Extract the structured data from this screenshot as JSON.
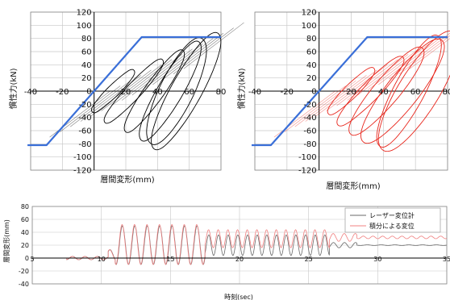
{
  "colors": {
    "black_series": "#000000",
    "red_series": "#e8261c",
    "envelope": "#3a6fd8",
    "gray_series": "#6a6a6a",
    "pink_series": "#f08080",
    "grid": "#c8c8c8"
  },
  "chart_data": [
    {
      "type": "line",
      "ylabel": "慣性力(kN)",
      "xlabel": "層間変形(mm)",
      "xlim": [
        -40,
        80
      ],
      "ylim": [
        -120,
        120
      ],
      "xticks": [
        -40,
        -20,
        0,
        20,
        40,
        60,
        80
      ],
      "yticks": [
        -120,
        -100,
        -80,
        -60,
        -40,
        -20,
        0,
        20,
        40,
        60,
        80,
        100,
        120
      ],
      "grid": true,
      "series": [
        {
          "role": "envelope",
          "color": "#3a6fd8",
          "x": [
            -42,
            -30,
            30,
            80
          ],
          "y": [
            -82,
            -82,
            82,
            82
          ]
        },
        {
          "role": "hysteresis-loops",
          "color": "#000000",
          "loops": [
            {
              "a": 13,
              "b": 12,
              "d": 40,
              "h": 32,
              "w": 4.0
            },
            {
              "a": 18,
              "b": 25,
              "d": 55,
              "h": 48,
              "w": 5.0
            },
            {
              "a": 18,
              "b": 38,
              "d": 68,
              "h": 62,
              "w": 6.0
            },
            {
              "a": 18,
              "b": 48,
              "d": 78,
              "h": 75,
              "w": 7.5
            },
            {
              "a": 20,
              "b": 58,
              "d": 88,
              "h": 88,
              "w": 9.0
            },
            {
              "a": 16,
              "b": 52,
              "d": 82,
              "h": 80,
              "w": 10.0
            }
          ]
        }
      ]
    },
    {
      "type": "line",
      "ylabel": "慣性力(kN)",
      "xlabel": "層間変形(mm)",
      "xlim": [
        -40,
        80
      ],
      "ylim": [
        -120,
        120
      ],
      "xticks": [
        -40,
        -20,
        0,
        20,
        40,
        60,
        80
      ],
      "yticks": [
        -120,
        -100,
        -80,
        -60,
        -40,
        -20,
        0,
        20,
        40,
        60,
        80,
        100,
        120
      ],
      "grid": true,
      "series": [
        {
          "role": "envelope",
          "color": "#3a6fd8",
          "x": [
            -42,
            -30,
            30,
            80
          ],
          "y": [
            -82,
            -82,
            82,
            82
          ]
        },
        {
          "role": "hysteresis-loops",
          "color": "#e8261c",
          "loops": [
            {
              "a": 14,
              "b": 20,
              "d": 40,
              "h": 35,
              "w": 4.5
            },
            {
              "a": 20,
              "b": 32,
              "d": 58,
              "h": 52,
              "w": 6.0
            },
            {
              "a": 22,
              "b": 42,
              "d": 72,
              "h": 66,
              "w": 8.0
            },
            {
              "a": 24,
              "b": 52,
              "d": 84,
              "h": 78,
              "w": 10.0
            },
            {
              "a": 22,
              "b": 62,
              "d": 92,
              "h": 90,
              "w": 12.0
            },
            {
              "a": 18,
              "b": 56,
              "d": 86,
              "h": 84,
              "w": 9.0
            }
          ]
        }
      ]
    },
    {
      "type": "line",
      "ylabel": "層間変形(mm)",
      "xlabel": "時刻(sec)",
      "xlim": [
        5,
        35
      ],
      "ylim": [
        -40,
        80
      ],
      "xticks": [
        5,
        10,
        15,
        20,
        25,
        30,
        35
      ],
      "yticks": [
        -40,
        -20,
        0,
        20,
        40,
        60,
        80
      ],
      "grid": true,
      "legend": "top-right",
      "series": [
        {
          "name": "レーザー変位計",
          "color": "#6a6a6a",
          "segments": [
            {
              "t0": 5,
              "t1": 7.5,
              "amp": 0,
              "offset": 0,
              "period": 1.0
            },
            {
              "t0": 7.5,
              "t1": 10.5,
              "amp": 2.5,
              "offset": 0,
              "period": 0.9
            },
            {
              "t0": 10.5,
              "t1": 11,
              "amp": 8,
              "offset": 5,
              "period": 0.9
            },
            {
              "t0": 11,
              "t1": 17.5,
              "amp": 30,
              "offset": 20,
              "period": 0.9
            },
            {
              "t0": 17.5,
              "t1": 26.5,
              "amp": 16,
              "offset": 20,
              "period": 0.7
            },
            {
              "t0": 26.5,
              "t1": 28.5,
              "amp": 4,
              "offset": 20,
              "period": 0.8
            },
            {
              "t0": 28.5,
              "t1": 35,
              "amp": 0.5,
              "offset": 20,
              "period": 1.0
            }
          ]
        },
        {
          "name": "積分による変位",
          "color": "#f08080",
          "segments": [
            {
              "t0": 5,
              "t1": 7.5,
              "amp": 0,
              "offset": 0,
              "period": 1.0
            },
            {
              "t0": 7.5,
              "t1": 10.5,
              "amp": 2.5,
              "offset": 0,
              "period": 0.9
            },
            {
              "t0": 10.5,
              "t1": 11,
              "amp": 8,
              "offset": 5,
              "period": 0.9
            },
            {
              "t0": 11,
              "t1": 17.5,
              "amp": 31,
              "offset": 21,
              "period": 0.9
            },
            {
              "t0": 17.5,
              "t1": 26.5,
              "amp": 14,
              "offset": 30,
              "period": 0.7
            },
            {
              "t0": 26.5,
              "t1": 28.5,
              "amp": 6,
              "offset": 32,
              "period": 0.8
            },
            {
              "t0": 28.5,
              "t1": 35,
              "amp": 2,
              "offset": 32,
              "period": 0.7
            }
          ]
        }
      ]
    }
  ]
}
